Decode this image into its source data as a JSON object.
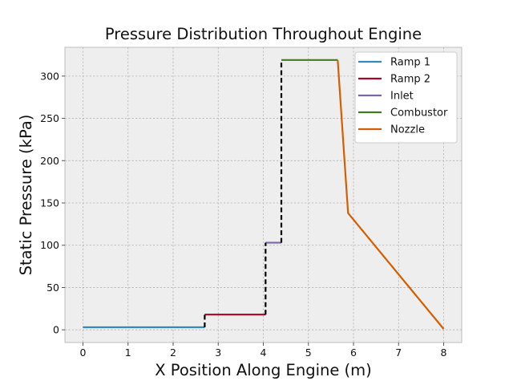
{
  "chart_data": {
    "type": "line",
    "title": "Pressure Distribution Throughout Engine",
    "xlabel": "X Position Along Engine (m)",
    "ylabel": "Static Pressure (kPa)",
    "xlim": [
      -0.4,
      8.4
    ],
    "ylim": [
      -15,
      334
    ],
    "xticks": [
      0,
      1,
      2,
      3,
      4,
      5,
      6,
      7,
      8
    ],
    "yticks": [
      0,
      50,
      100,
      150,
      200,
      250,
      300
    ],
    "grid": true,
    "legend_position": "top-right",
    "series": [
      {
        "name": "Ramp 1",
        "color": "#348ABD",
        "x": [
          0,
          2.7
        ],
        "y": [
          3,
          3
        ]
      },
      {
        "name": "Ramp 2",
        "color": "#A60628",
        "x": [
          2.7,
          4.05
        ],
        "y": [
          18,
          18
        ]
      },
      {
        "name": "Inlet",
        "color": "#7A68A6",
        "x": [
          4.05,
          4.4
        ],
        "y": [
          103,
          103
        ]
      },
      {
        "name": "Combustor",
        "color": "#467821",
        "x": [
          4.4,
          5.65
        ],
        "y": [
          319,
          319
        ]
      },
      {
        "name": "Nozzle",
        "color": "#D55E00",
        "x": [
          5.65,
          5.88,
          8.0
        ],
        "y": [
          319,
          138,
          1
        ]
      }
    ],
    "transitions": [
      {
        "color": "#000000",
        "x": [
          2.7,
          2.7
        ],
        "y": [
          3,
          18
        ]
      },
      {
        "color": "#000000",
        "x": [
          4.05,
          4.05
        ],
        "y": [
          18,
          103
        ]
      },
      {
        "color": "#000000",
        "x": [
          4.4,
          4.4
        ],
        "y": [
          103,
          319
        ]
      }
    ]
  }
}
